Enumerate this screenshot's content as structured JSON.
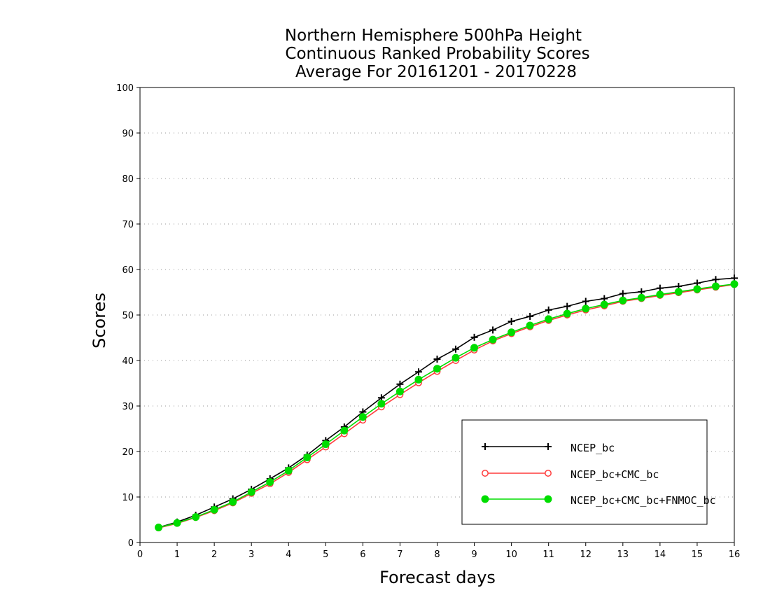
{
  "chart_data": {
    "type": "line",
    "title_lines": [
      "Northern Hemisphere 500hPa Height",
      "Continuous Ranked Probability Scores",
      "Average For 20161201 - 20170228"
    ],
    "xlabel": "Forecast days",
    "ylabel": "Scores",
    "xlim": [
      0,
      16
    ],
    "ylim": [
      0,
      100
    ],
    "xticks": [
      0,
      1,
      2,
      3,
      4,
      5,
      6,
      7,
      8,
      9,
      10,
      11,
      12,
      13,
      14,
      15,
      16
    ],
    "yticks": [
      0,
      10,
      20,
      30,
      40,
      50,
      60,
      70,
      80,
      90,
      100
    ],
    "grid": "horizontal dotted",
    "legend_position": "bottom-right",
    "x": [
      0.5,
      1,
      1.5,
      2,
      2.5,
      3,
      3.5,
      4,
      4.5,
      5,
      5.5,
      6,
      6.5,
      7,
      7.5,
      8,
      8.5,
      9,
      9.5,
      10,
      10.5,
      11,
      11.5,
      12,
      12.5,
      13,
      13.5,
      14,
      14.5,
      15,
      15.5,
      16
    ],
    "series": [
      {
        "name": "NCEP_bc",
        "color": "#000000",
        "marker": "plus",
        "values": [
          3.3,
          4.5,
          6.0,
          7.8,
          9.6,
          11.7,
          14.0,
          16.4,
          19.2,
          22.4,
          25.4,
          28.7,
          31.8,
          34.8,
          37.5,
          40.3,
          42.5,
          45.1,
          46.7,
          48.6,
          49.7,
          51.1,
          51.9,
          53.0,
          53.6,
          54.7,
          55.1,
          55.9,
          56.3,
          57.0,
          57.8,
          58.1
        ]
      },
      {
        "name": "NCEP_bc+CMC_bc",
        "color": "#ff3b3b",
        "marker": "open-circle",
        "values": [
          3.2,
          4.2,
          5.5,
          7.0,
          8.7,
          10.8,
          12.9,
          15.4,
          18.2,
          21.0,
          23.9,
          26.9,
          29.8,
          32.5,
          35.1,
          37.6,
          40.0,
          42.3,
          44.3,
          45.9,
          47.4,
          48.8,
          50.0,
          51.1,
          52.0,
          53.0,
          53.6,
          54.3,
          54.9,
          55.5,
          56.1,
          56.7
        ]
      },
      {
        "name": "NCEP_bc+CMC_bc+FNMOC_bc",
        "color": "#00dd00",
        "marker": "filled-circle",
        "values": [
          3.3,
          4.3,
          5.6,
          7.2,
          8.9,
          11.1,
          13.3,
          15.8,
          18.7,
          21.6,
          24.6,
          27.6,
          30.5,
          33.2,
          35.8,
          38.2,
          40.6,
          42.8,
          44.6,
          46.2,
          47.7,
          49.1,
          50.3,
          51.4,
          52.3,
          53.2,
          53.8,
          54.5,
          55.1,
          55.7,
          56.3,
          56.8
        ]
      }
    ]
  }
}
